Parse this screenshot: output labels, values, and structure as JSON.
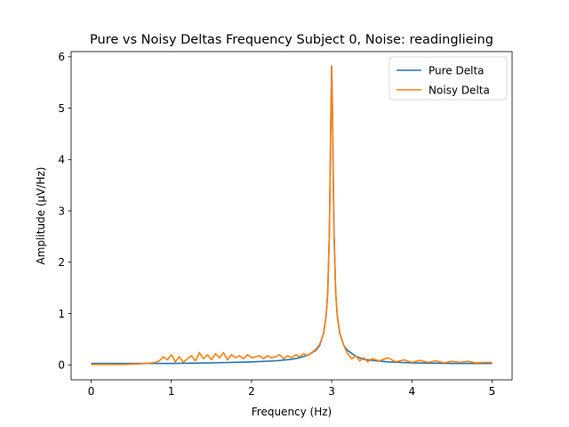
{
  "chart_data": {
    "type": "line",
    "title": "Pure vs Noisy Deltas Frequency Subject 0, Noise: readinglieing",
    "xlabel": "Frequency (Hz)",
    "ylabel": "Amplitude (μV/Hz)",
    "xlim": [
      -0.25,
      5.25
    ],
    "ylim": [
      -0.29,
      6.1
    ],
    "xticks": [
      0,
      1,
      2,
      3,
      4,
      5
    ],
    "yticks": [
      0,
      1,
      2,
      3,
      4,
      5,
      6
    ],
    "grid": false,
    "legend": "top-right",
    "series": [
      {
        "name": "Pure Delta",
        "color": "#1f77b4",
        "x": [
          0,
          0.5,
          1.0,
          1.5,
          2.0,
          2.3,
          2.5,
          2.6,
          2.7,
          2.8,
          2.85,
          2.9,
          2.93,
          2.95,
          2.97,
          2.98,
          2.99,
          3.0,
          3.01,
          3.02,
          3.03,
          3.05,
          3.07,
          3.1,
          3.15,
          3.2,
          3.3,
          3.4,
          3.5,
          3.7,
          4.0,
          4.5,
          5.0
        ],
        "y": [
          0.03,
          0.03,
          0.03,
          0.04,
          0.06,
          0.08,
          0.11,
          0.14,
          0.19,
          0.28,
          0.38,
          0.62,
          0.95,
          1.4,
          2.5,
          3.6,
          4.9,
          5.82,
          4.9,
          3.6,
          2.5,
          1.4,
          0.95,
          0.62,
          0.38,
          0.28,
          0.17,
          0.11,
          0.09,
          0.06,
          0.04,
          0.03,
          0.03
        ]
      },
      {
        "name": "Noisy Delta",
        "color": "#ff7f0e",
        "x": [
          0,
          0.2,
          0.4,
          0.6,
          0.7,
          0.8,
          0.85,
          0.9,
          0.95,
          1.0,
          1.05,
          1.1,
          1.15,
          1.2,
          1.25,
          1.3,
          1.35,
          1.4,
          1.45,
          1.5,
          1.55,
          1.6,
          1.65,
          1.7,
          1.75,
          1.8,
          1.85,
          1.9,
          1.95,
          2.0,
          2.05,
          2.1,
          2.15,
          2.2,
          2.25,
          2.3,
          2.35,
          2.4,
          2.45,
          2.5,
          2.55,
          2.6,
          2.65,
          2.7,
          2.75,
          2.8,
          2.85,
          2.9,
          2.93,
          2.95,
          2.97,
          2.98,
          2.99,
          3.0,
          3.01,
          3.02,
          3.03,
          3.05,
          3.07,
          3.1,
          3.15,
          3.2,
          3.25,
          3.3,
          3.35,
          3.4,
          3.45,
          3.5,
          3.6,
          3.7,
          3.8,
          3.9,
          4.0,
          4.1,
          4.2,
          4.3,
          4.4,
          4.5,
          4.6,
          4.7,
          4.8,
          4.9,
          5.0
        ],
        "y": [
          0.01,
          0.01,
          0.01,
          0.02,
          0.03,
          0.05,
          0.08,
          0.16,
          0.1,
          0.2,
          0.06,
          0.16,
          0.05,
          0.12,
          0.18,
          0.08,
          0.24,
          0.12,
          0.2,
          0.1,
          0.22,
          0.14,
          0.24,
          0.1,
          0.2,
          0.14,
          0.18,
          0.12,
          0.2,
          0.14,
          0.16,
          0.18,
          0.12,
          0.18,
          0.14,
          0.16,
          0.2,
          0.12,
          0.18,
          0.14,
          0.2,
          0.16,
          0.22,
          0.18,
          0.24,
          0.3,
          0.4,
          0.62,
          0.95,
          1.4,
          2.5,
          3.6,
          4.9,
          5.82,
          4.9,
          3.6,
          2.5,
          1.4,
          0.95,
          0.62,
          0.38,
          0.22,
          0.12,
          0.18,
          0.08,
          0.14,
          0.06,
          0.12,
          0.08,
          0.14,
          0.06,
          0.1,
          0.05,
          0.09,
          0.05,
          0.08,
          0.04,
          0.07,
          0.05,
          0.07,
          0.04,
          0.05,
          0.05
        ]
      }
    ]
  }
}
